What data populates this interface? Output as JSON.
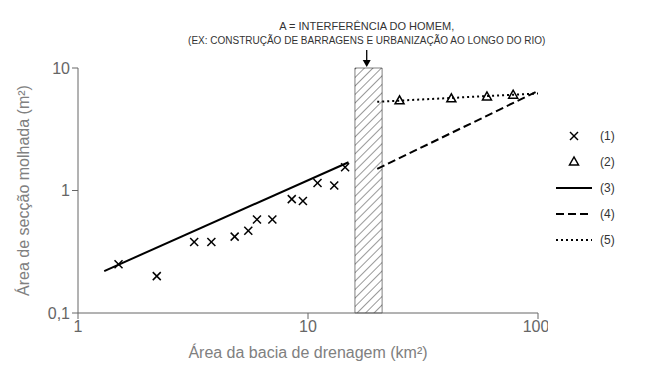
{
  "chart_data": {
    "type": "scatter",
    "log": true,
    "grid": false,
    "legend": "right",
    "xlabel": "Área da bacia de drenagem (km²)",
    "ylabel": "Área de secção molhada (m²)",
    "xlim": [
      1,
      100
    ],
    "ylim": [
      0.1,
      10
    ],
    "xticks": [
      1,
      10,
      100
    ],
    "yticks": [
      {
        "value": 0.1,
        "label": "0,1"
      },
      1,
      10
    ],
    "series": [
      {
        "name": "(1)",
        "type": "scatter",
        "marker": "x",
        "color": "#000000",
        "x": [
          1.5,
          2.2,
          3.2,
          3.8,
          4.8,
          5.5,
          6.0,
          7.0,
          8.5,
          9.5,
          11.0,
          13.0,
          14.5
        ],
        "values": [
          0.25,
          0.2,
          0.38,
          0.38,
          0.42,
          0.47,
          0.58,
          0.58,
          0.85,
          0.82,
          1.15,
          1.1,
          1.55
        ]
      },
      {
        "name": "(2)",
        "type": "scatter",
        "marker": "triangle",
        "color": "#000000",
        "x": [
          25,
          42,
          60,
          78
        ],
        "values": [
          5.4,
          5.6,
          5.8,
          6.0
        ]
      },
      {
        "name": "(3)",
        "type": "line",
        "line_style": "solid",
        "color": "#000000",
        "x": [
          1.3,
          15.0
        ],
        "values": [
          0.22,
          1.7
        ]
      },
      {
        "name": "(4)",
        "type": "line",
        "line_style": "dashed",
        "color": "#000000",
        "x": [
          20.0,
          100.0
        ],
        "values": [
          1.5,
          6.5
        ]
      },
      {
        "name": "(5)",
        "type": "line",
        "line_style": "dotted",
        "color": "#000000",
        "x": [
          20.0,
          100.0
        ],
        "values": [
          5.3,
          6.2
        ]
      }
    ],
    "band": {
      "x1": 16.0,
      "x2": 21.0
    },
    "annotation": {
      "x": 18.0,
      "lines": [
        "A = INTERFERÊNCIA DO HOMEM,",
        "(EX: CONSTRUÇÃO DE BARRAGENS E URBANIZAÇÃO AO LONGO DO RIO)"
      ]
    }
  }
}
